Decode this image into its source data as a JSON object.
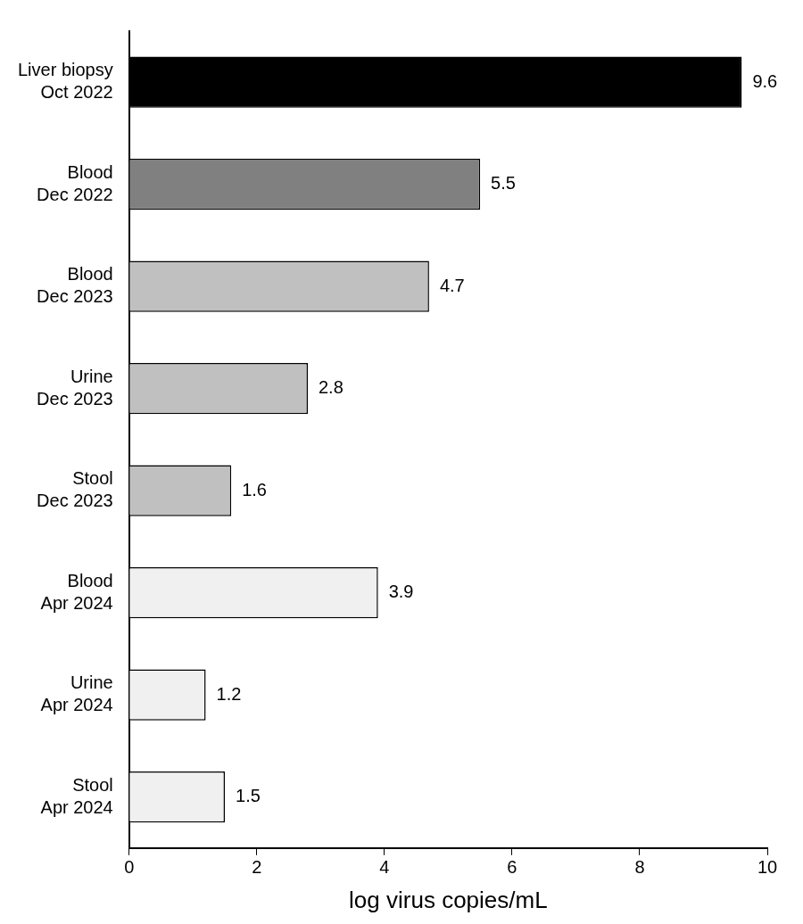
{
  "chart_data": {
    "type": "bar",
    "orientation": "horizontal",
    "categories": [
      [
        "Liver biopsy",
        "Oct 2022"
      ],
      [
        "Blood",
        "Dec 2022"
      ],
      [
        "Blood",
        "Dec 2023"
      ],
      [
        "Urine",
        "Dec 2023"
      ],
      [
        "Stool",
        "Dec 2023"
      ],
      [
        "Blood",
        "Apr 2024"
      ],
      [
        "Urine",
        "Apr 2024"
      ],
      [
        "Stool",
        "Apr 2024"
      ]
    ],
    "values": [
      9.6,
      5.5,
      4.7,
      2.8,
      1.6,
      3.9,
      1.2,
      1.5
    ],
    "colors": [
      "#000000",
      "#808080",
      "#c0c0c0",
      "#c0c0c0",
      "#c0c0c0",
      "#f0f0f0",
      "#f0f0f0",
      "#f0f0f0"
    ],
    "x_label": "log virus copies/mL",
    "xlim": [
      0,
      10
    ],
    "xticks": [
      0,
      2,
      4,
      6,
      8,
      10
    ],
    "grid": false,
    "data_labels": true
  }
}
